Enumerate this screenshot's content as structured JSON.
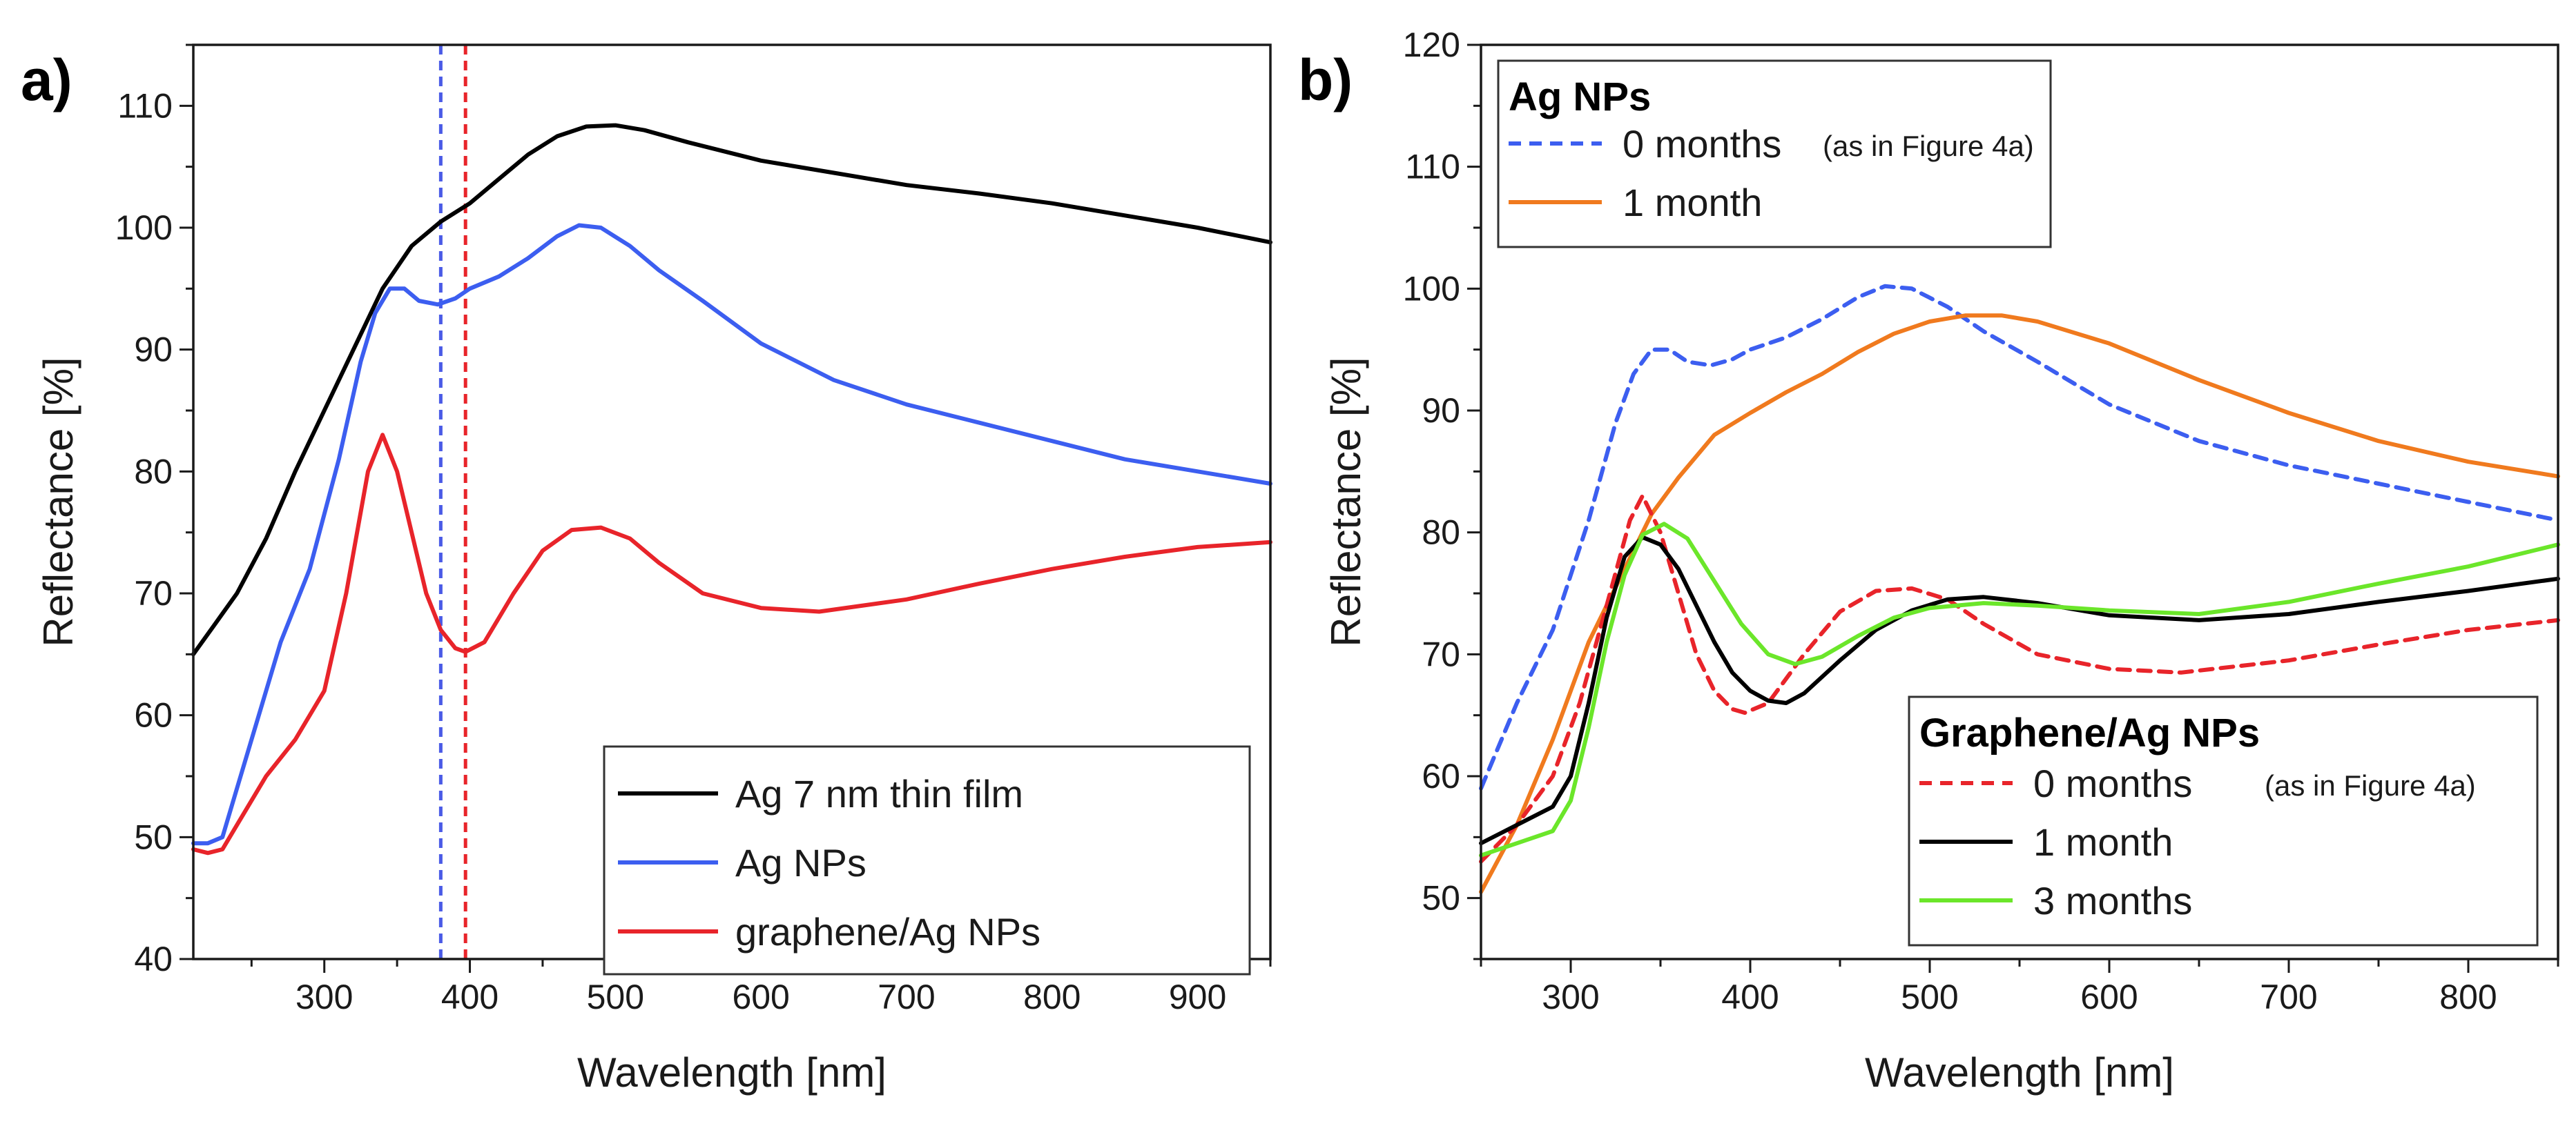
{
  "chart_data": [
    {
      "panel": "a)",
      "type": "line",
      "xlabel": "Wavelength [nm]",
      "ylabel": "Reflectance [%]",
      "xlim": [
        210,
        950
      ],
      "ylim": [
        40,
        115
      ],
      "xticks": [
        300,
        400,
        500,
        600,
        700,
        800,
        900
      ],
      "yticks": [
        40,
        50,
        60,
        70,
        80,
        90,
        100,
        110
      ],
      "legend_position": "bottom-right",
      "vlines": [
        {
          "x": 380,
          "color": "#4a5be6",
          "style": "dashed"
        },
        {
          "x": 397,
          "color": "#e8242a",
          "style": "dashed"
        }
      ],
      "series": [
        {
          "name": "Ag 7 nm thin film",
          "color": "#000000",
          "style": "solid",
          "points": [
            [
              210,
              65
            ],
            [
              225,
              67.5
            ],
            [
              240,
              70
            ],
            [
              260,
              74.5
            ],
            [
              280,
              80
            ],
            [
              300,
              85
            ],
            [
              320,
              90
            ],
            [
              340,
              95
            ],
            [
              360,
              98.5
            ],
            [
              380,
              100.5
            ],
            [
              400,
              102
            ],
            [
              420,
              104
            ],
            [
              440,
              106
            ],
            [
              460,
              107.5
            ],
            [
              480,
              108.3
            ],
            [
              500,
              108.4
            ],
            [
              520,
              108
            ],
            [
              550,
              107
            ],
            [
              600,
              105.5
            ],
            [
              650,
              104.5
            ],
            [
              700,
              103.5
            ],
            [
              750,
              102.8
            ],
            [
              800,
              102
            ],
            [
              850,
              101
            ],
            [
              900,
              100
            ],
            [
              950,
              98.8
            ]
          ]
        },
        {
          "name": "Ag NPs",
          "color": "#3c5ef0",
          "style": "solid",
          "points": [
            [
              210,
              49.5
            ],
            [
              220,
              49.5
            ],
            [
              230,
              50
            ],
            [
              240,
              54
            ],
            [
              250,
              58
            ],
            [
              270,
              66
            ],
            [
              290,
              72
            ],
            [
              310,
              81
            ],
            [
              325,
              89
            ],
            [
              335,
              93
            ],
            [
              345,
              95
            ],
            [
              355,
              95
            ],
            [
              365,
              94
            ],
            [
              378,
              93.7
            ],
            [
              390,
              94.2
            ],
            [
              400,
              95
            ],
            [
              420,
              96
            ],
            [
              440,
              97.5
            ],
            [
              460,
              99.3
            ],
            [
              475,
              100.2
            ],
            [
              490,
              100
            ],
            [
              510,
              98.5
            ],
            [
              530,
              96.5
            ],
            [
              560,
              94
            ],
            [
              600,
              90.5
            ],
            [
              650,
              87.5
            ],
            [
              700,
              85.5
            ],
            [
              750,
              84
            ],
            [
              800,
              82.5
            ],
            [
              850,
              81
            ],
            [
              900,
              80
            ],
            [
              950,
              79
            ]
          ]
        },
        {
          "name": "graphene/Ag NPs",
          "color": "#e8242a",
          "style": "solid",
          "points": [
            [
              210,
              49
            ],
            [
              220,
              48.7
            ],
            [
              230,
              49
            ],
            [
              240,
              51
            ],
            [
              260,
              55
            ],
            [
              280,
              58
            ],
            [
              300,
              62
            ],
            [
              315,
              70
            ],
            [
              330,
              80
            ],
            [
              340,
              83
            ],
            [
              350,
              80
            ],
            [
              360,
              75
            ],
            [
              370,
              70
            ],
            [
              380,
              67
            ],
            [
              390,
              65.5
            ],
            [
              397,
              65.2
            ],
            [
              410,
              66
            ],
            [
              430,
              70
            ],
            [
              450,
              73.5
            ],
            [
              470,
              75.2
            ],
            [
              490,
              75.4
            ],
            [
              510,
              74.5
            ],
            [
              530,
              72.5
            ],
            [
              560,
              70
            ],
            [
              600,
              68.8
            ],
            [
              640,
              68.5
            ],
            [
              700,
              69.5
            ],
            [
              750,
              70.8
            ],
            [
              800,
              72
            ],
            [
              850,
              73
            ],
            [
              900,
              73.8
            ],
            [
              950,
              74.2
            ]
          ]
        }
      ]
    },
    {
      "panel": "b)",
      "type": "line",
      "xlabel": "Wavelength [nm]",
      "ylabel": "Reflectance [%]",
      "xlim": [
        250,
        850
      ],
      "ylim": [
        45,
        120
      ],
      "xticks": [
        300,
        400,
        500,
        600,
        700,
        800
      ],
      "yticks": [
        50,
        60,
        70,
        80,
        90,
        100,
        110,
        120
      ],
      "legend_groups": [
        {
          "title": "Ag NPs",
          "position": "top-left",
          "entries": [
            {
              "name": "0 months",
              "note": "(as in Figure 4a)",
              "color": "#3c5ef0",
              "style": "dashed"
            },
            {
              "name": "1 month",
              "note": "",
              "color": "#f07a1e",
              "style": "solid"
            }
          ]
        },
        {
          "title": "Graphene/Ag NPs",
          "position": "bottom-right",
          "entries": [
            {
              "name": "0 months",
              "note": "(as in Figure 4a)",
              "color": "#e8242a",
              "style": "dashed"
            },
            {
              "name": "1 month",
              "note": "",
              "color": "#000000",
              "style": "solid"
            },
            {
              "name": "3 months",
              "note": "",
              "color": "#6be62a",
              "style": "solid"
            }
          ]
        }
      ],
      "series": [
        {
          "name": "Ag NPs 0 months",
          "color": "#3c5ef0",
          "style": "dashed",
          "points": [
            [
              250,
              59
            ],
            [
              270,
              66
            ],
            [
              290,
              72
            ],
            [
              310,
              81
            ],
            [
              325,
              89
            ],
            [
              335,
              93
            ],
            [
              345,
              95
            ],
            [
              355,
              95
            ],
            [
              365,
              94
            ],
            [
              378,
              93.7
            ],
            [
              390,
              94.2
            ],
            [
              400,
              95
            ],
            [
              420,
              96
            ],
            [
              440,
              97.5
            ],
            [
              460,
              99.3
            ],
            [
              475,
              100.2
            ],
            [
              490,
              100
            ],
            [
              510,
              98.5
            ],
            [
              530,
              96.5
            ],
            [
              560,
              94
            ],
            [
              600,
              90.5
            ],
            [
              650,
              87.5
            ],
            [
              700,
              85.5
            ],
            [
              750,
              84
            ],
            [
              800,
              82.5
            ],
            [
              850,
              81
            ]
          ]
        },
        {
          "name": "Ag NPs 1 month",
          "color": "#f07a1e",
          "style": "solid",
          "points": [
            [
              250,
              50.5
            ],
            [
              270,
              56
            ],
            [
              290,
              63
            ],
            [
              310,
              71
            ],
            [
              330,
              77
            ],
            [
              345,
              81.5
            ],
            [
              360,
              84.5
            ],
            [
              380,
              88
            ],
            [
              400,
              89.8
            ],
            [
              420,
              91.5
            ],
            [
              440,
              93
            ],
            [
              460,
              94.8
            ],
            [
              480,
              96.3
            ],
            [
              500,
              97.3
            ],
            [
              520,
              97.8
            ],
            [
              540,
              97.8
            ],
            [
              560,
              97.3
            ],
            [
              600,
              95.5
            ],
            [
              650,
              92.5
            ],
            [
              700,
              89.8
            ],
            [
              750,
              87.5
            ],
            [
              800,
              85.8
            ],
            [
              850,
              84.6
            ]
          ]
        },
        {
          "name": "Graphene/Ag NPs 0 months",
          "color": "#e8242a",
          "style": "dashed",
          "points": [
            [
              250,
              53
            ],
            [
              270,
              56
            ],
            [
              290,
              60
            ],
            [
              305,
              66
            ],
            [
              320,
              74
            ],
            [
              333,
              81
            ],
            [
              340,
              83
            ],
            [
              350,
              80
            ],
            [
              360,
              75
            ],
            [
              370,
              70
            ],
            [
              380,
              67
            ],
            [
              390,
              65.5
            ],
            [
              397,
              65.2
            ],
            [
              410,
              66
            ],
            [
              430,
              70
            ],
            [
              450,
              73.5
            ],
            [
              470,
              75.2
            ],
            [
              490,
              75.4
            ],
            [
              510,
              74.5
            ],
            [
              530,
              72.5
            ],
            [
              560,
              70
            ],
            [
              600,
              68.8
            ],
            [
              640,
              68.5
            ],
            [
              700,
              69.5
            ],
            [
              750,
              70.8
            ],
            [
              800,
              72
            ],
            [
              850,
              72.8
            ]
          ]
        },
        {
          "name": "Graphene/Ag NPs 1 month",
          "color": "#000000",
          "style": "solid",
          "points": [
            [
              250,
              54.5
            ],
            [
              270,
              56
            ],
            [
              290,
              57.5
            ],
            [
              300,
              60
            ],
            [
              310,
              66
            ],
            [
              320,
              73
            ],
            [
              330,
              78
            ],
            [
              340,
              79.6
            ],
            [
              350,
              79
            ],
            [
              360,
              77
            ],
            [
              370,
              74
            ],
            [
              380,
              71
            ],
            [
              390,
              68.5
            ],
            [
              400,
              67
            ],
            [
              410,
              66.2
            ],
            [
              420,
              66
            ],
            [
              430,
              66.8
            ],
            [
              450,
              69.5
            ],
            [
              470,
              72
            ],
            [
              490,
              73.6
            ],
            [
              510,
              74.5
            ],
            [
              530,
              74.7
            ],
            [
              560,
              74.2
            ],
            [
              600,
              73.2
            ],
            [
              650,
              72.8
            ],
            [
              700,
              73.3
            ],
            [
              750,
              74.3
            ],
            [
              800,
              75.2
            ],
            [
              850,
              76.2
            ]
          ]
        },
        {
          "name": "Graphene/Ag NPs 3 months",
          "color": "#6be62a",
          "style": "solid",
          "points": [
            [
              250,
              53.5
            ],
            [
              270,
              54.5
            ],
            [
              290,
              55.5
            ],
            [
              300,
              58
            ],
            [
              310,
              64
            ],
            [
              320,
              71
            ],
            [
              330,
              76.5
            ],
            [
              340,
              79.8
            ],
            [
              352,
              80.7
            ],
            [
              365,
              79.5
            ],
            [
              380,
              76
            ],
            [
              395,
              72.5
            ],
            [
              410,
              70
            ],
            [
              425,
              69.2
            ],
            [
              440,
              69.8
            ],
            [
              460,
              71.5
            ],
            [
              480,
              73
            ],
            [
              500,
              73.8
            ],
            [
              530,
              74.2
            ],
            [
              560,
              74
            ],
            [
              600,
              73.6
            ],
            [
              650,
              73.3
            ],
            [
              700,
              74.3
            ],
            [
              750,
              75.8
            ],
            [
              800,
              77.2
            ],
            [
              850,
              79
            ]
          ]
        }
      ]
    }
  ]
}
